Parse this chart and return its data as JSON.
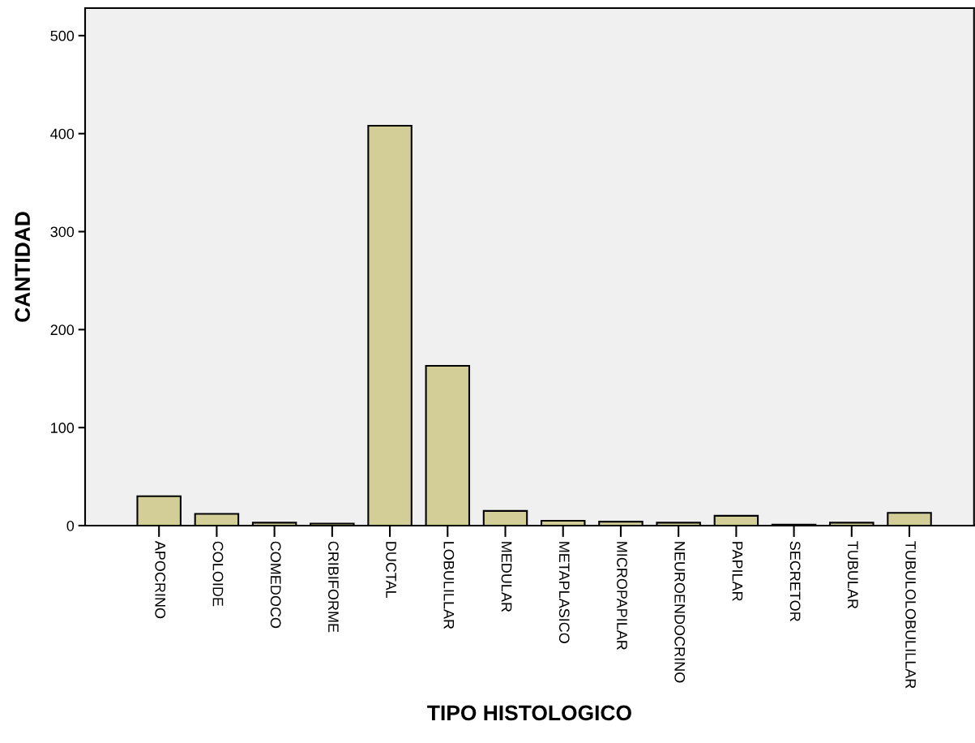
{
  "chart_data": {
    "type": "bar",
    "xlabel": "TIPO HISTOLOGICO",
    "ylabel": "CANTIDAD",
    "categories": [
      "APOCRINO",
      "COLOIDE",
      "COMEDOCO",
      "CRIBIFORME",
      "DUCTAL",
      "LOBULILLAR",
      "MEDULAR",
      "METAPLASICO",
      "MICROPAPILAR",
      "NEUROENDOCRINO",
      "PAPILAR",
      "SECRETOR",
      "TUBULAR",
      "TUBULOLOBULILLAR"
    ],
    "values": [
      30,
      12,
      3,
      2,
      408,
      163,
      15,
      5,
      4,
      3,
      10,
      1,
      3,
      13
    ],
    "color": "#d3ce97",
    "ylim": [
      0,
      528
    ],
    "yticks": [
      0,
      100,
      200,
      300,
      400,
      500
    ],
    "grid": false,
    "legend": false
  }
}
